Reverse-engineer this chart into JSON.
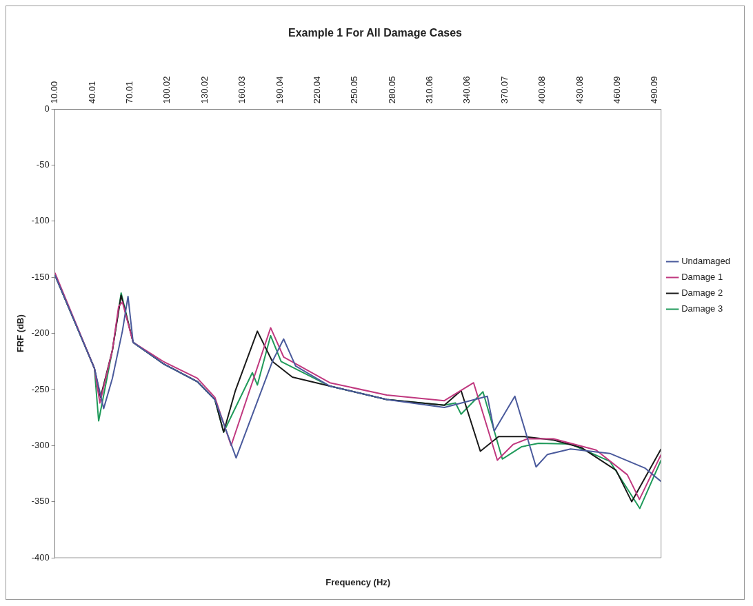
{
  "chart_data": {
    "type": "line",
    "title": "Example 1 For All Damage Cases",
    "xlabel": "Frequency (Hz)",
    "ylabel": "FRF (dB)",
    "xlim": [
      10,
      495
    ],
    "ylim": [
      -400,
      0
    ],
    "xticks": [
      {
        "value": 10,
        "label": "10.00"
      },
      40.01,
      70.01,
      100.02,
      130.02,
      160.03,
      190.04,
      220.04,
      250.05,
      280.05,
      310.06,
      340.06,
      370.07,
      400.08,
      430.08,
      460.09,
      490.09
    ],
    "yticks": [
      -400,
      -350,
      -300,
      -250,
      -200,
      -150,
      -100,
      -50,
      0
    ],
    "legend": "right",
    "series": [
      {
        "name": "Undamaged",
        "color": "#4a5a9c",
        "x": [
          10,
          41.6,
          49,
          56,
          64,
          68.5,
          72.6,
          96.7,
          124,
          138,
          155,
          184,
          193,
          202.6,
          230,
          275.5,
          321.6,
          356,
          361.5,
          378,
          395,
          404,
          422.6,
          454,
          482,
          495
        ],
        "values": [
          -148,
          -231,
          -267,
          -240,
          -198,
          -167,
          -208,
          -227,
          -243,
          -259,
          -311,
          -225,
          -205,
          -229,
          -247,
          -259,
          -266,
          -256,
          -287,
          -256,
          -319,
          -308,
          -303,
          -307,
          -320,
          -332
        ]
      },
      {
        "name": "Damage 1",
        "color": "#c0387f",
        "x": [
          10,
          41.6,
          46,
          56,
          61,
          64,
          72.6,
          96.7,
          124,
          138,
          151,
          182.6,
          193,
          230,
          275.5,
          321.6,
          345,
          364,
          376.6,
          388,
          409,
          443,
          468,
          477.7,
          495
        ],
        "values": [
          -146,
          -231,
          -262,
          -215,
          -176,
          -172,
          -208,
          -225,
          -240,
          -257,
          -300,
          -195,
          -221,
          -244,
          -255,
          -260,
          -244,
          -313,
          -299,
          -294,
          -294,
          -304,
          -326,
          -348,
          -308
        ]
      },
      {
        "name": "Damage 2",
        "color": "#1a1a1a",
        "x": [
          10,
          41.6,
          46.5,
          56,
          63,
          72.6,
          96.7,
          124,
          138,
          145,
          154.4,
          172,
          184,
          200,
          230,
          275.5,
          321.6,
          335,
          350.4,
          365,
          385.5,
          409,
          431.6,
          459,
          471.5,
          495
        ],
        "values": [
          -148,
          -231,
          -257,
          -215,
          -166,
          -208,
          -227,
          -243,
          -259,
          -288,
          -251,
          -198,
          -225,
          -239,
          -247,
          -259,
          -264,
          -251,
          -305,
          -292,
          -292,
          -295,
          -302,
          -322,
          -350,
          -303
        ]
      },
      {
        "name": "Damage 3",
        "color": "#1f9a5a",
        "x": [
          10,
          41.6,
          45,
          56,
          63,
          72.6,
          96.7,
          124,
          138,
          145,
          168,
          172,
          182.6,
          191,
          230,
          275.5,
          321.6,
          330.5,
          335,
          352.5,
          368,
          383.5,
          397,
          422.6,
          454,
          478,
          495
        ],
        "values": [
          -148,
          -231,
          -278,
          -215,
          -164,
          -208,
          -227,
          -243,
          -259,
          -288,
          -235,
          -246,
          -202,
          -225,
          -247,
          -259,
          -264,
          -262,
          -272,
          -252,
          -312,
          -301,
          -298,
          -298.6,
          -314,
          -356,
          -313
        ]
      }
    ]
  }
}
